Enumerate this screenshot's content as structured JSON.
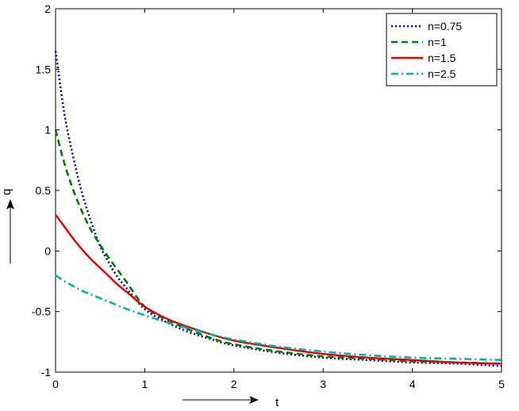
{
  "chart_data": {
    "type": "line",
    "xlabel": "t",
    "ylabel": "q",
    "xlim": [
      0,
      5
    ],
    "ylim": [
      -1,
      2
    ],
    "xticks": [
      0,
      1,
      2,
      3,
      4,
      5
    ],
    "yticks": [
      -1,
      -0.5,
      0,
      0.5,
      1,
      1.5,
      2
    ],
    "xtick_labels": [
      "0",
      "1",
      "2",
      "3",
      "4",
      "5"
    ],
    "ytick_labels": [
      "-1",
      "-0.5",
      "0",
      "0.5",
      "1",
      "1.5",
      "2"
    ],
    "grid": false,
    "legend_position": "top-right",
    "series": [
      {
        "name": "n=0.75",
        "color": "#0000b0",
        "style": "dotted",
        "x": [
          0,
          0.1,
          0.2,
          0.3,
          0.4,
          0.5,
          0.6,
          0.7,
          0.8,
          1.0,
          1.25,
          1.5,
          1.75,
          2.0,
          2.5,
          3.0,
          3.5,
          4.0,
          4.5,
          5.0
        ],
        "y": [
          1.65,
          1.13,
          0.77,
          0.47,
          0.24,
          0.04,
          -0.1,
          -0.22,
          -0.31,
          -0.48,
          -0.59,
          -0.67,
          -0.73,
          -0.78,
          -0.84,
          -0.88,
          -0.9,
          -0.92,
          -0.93,
          -0.95
        ]
      },
      {
        "name": "n=1",
        "color": "#007a00",
        "style": "dashed",
        "x": [
          0,
          0.1,
          0.2,
          0.3,
          0.4,
          0.5,
          0.6,
          0.7,
          0.8,
          1.0,
          1.25,
          1.5,
          1.75,
          2.0,
          2.5,
          3.0,
          3.5,
          4.0,
          4.5,
          5.0
        ],
        "y": [
          1.0,
          0.72,
          0.5,
          0.32,
          0.17,
          0.05,
          -0.06,
          -0.16,
          -0.26,
          -0.46,
          -0.57,
          -0.65,
          -0.72,
          -0.77,
          -0.83,
          -0.87,
          -0.89,
          -0.91,
          -0.92,
          -0.93
        ]
      },
      {
        "name": "n=1.5",
        "color": "#e00000",
        "style": "solid",
        "x": [
          0,
          0.1,
          0.2,
          0.3,
          0.4,
          0.5,
          0.6,
          0.7,
          0.8,
          1.0,
          1.25,
          1.5,
          1.75,
          2.0,
          2.5,
          3.0,
          3.5,
          4.0,
          4.5,
          5.0
        ],
        "y": [
          0.3,
          0.2,
          0.1,
          0.01,
          -0.07,
          -0.14,
          -0.21,
          -0.28,
          -0.34,
          -0.46,
          -0.56,
          -0.63,
          -0.69,
          -0.74,
          -0.8,
          -0.85,
          -0.88,
          -0.9,
          -0.92,
          -0.93
        ]
      },
      {
        "name": "n=2.5",
        "color": "#00b0b0",
        "style": "dashdot",
        "x": [
          0,
          0.1,
          0.2,
          0.3,
          0.4,
          0.5,
          0.6,
          0.7,
          0.8,
          1.0,
          1.25,
          1.5,
          1.75,
          2.0,
          2.5,
          3.0,
          3.5,
          4.0,
          4.5,
          5.0
        ],
        "y": [
          -0.2,
          -0.25,
          -0.29,
          -0.33,
          -0.36,
          -0.39,
          -0.42,
          -0.45,
          -0.48,
          -0.53,
          -0.59,
          -0.64,
          -0.69,
          -0.73,
          -0.79,
          -0.83,
          -0.86,
          -0.88,
          -0.89,
          -0.9
        ]
      }
    ]
  }
}
